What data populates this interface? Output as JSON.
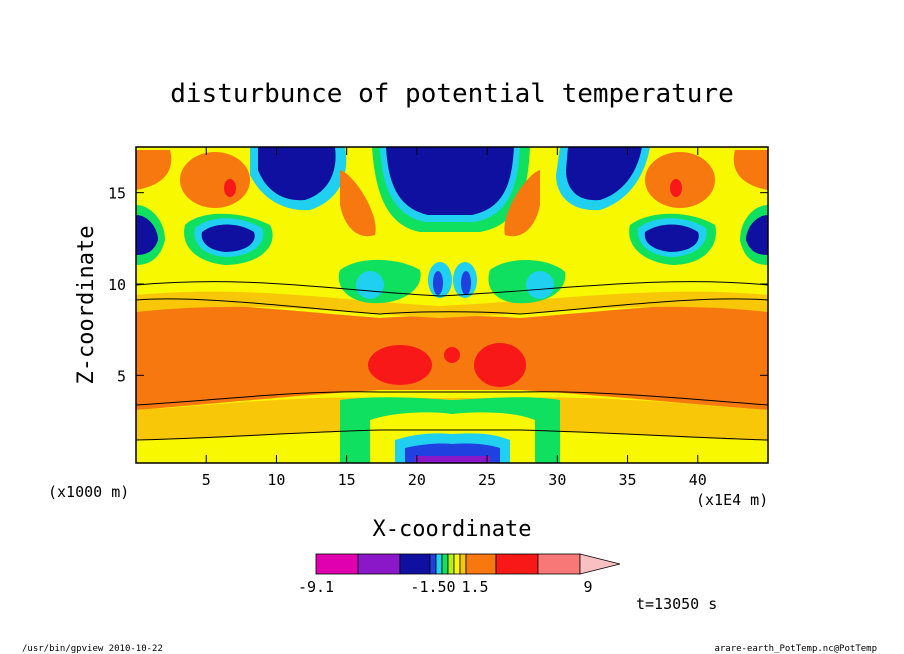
{
  "chart_data": {
    "type": "heatmap",
    "title": "disturbunce of potential temperature",
    "xlabel": "X-coordinate",
    "ylabel": "Z-coordinate",
    "x_unit_label": "(x1000 m)",
    "x_scale_label": "(x1E4 m)",
    "xlim": [
      0,
      45
    ],
    "ylim": [
      0.2,
      17.5
    ],
    "x_ticks": [
      5,
      10,
      15,
      20,
      25,
      30,
      35,
      40
    ],
    "y_ticks": [
      5,
      10,
      15
    ],
    "time_label": "t=13050 s",
    "colorbar": {
      "colors": [
        "#e000b0",
        "#8a18c8",
        "#1010a0",
        "#2040e0",
        "#20d0f0",
        "#10e060",
        "#b8ee18",
        "#f8f800",
        "#f8c808",
        "#f87810",
        "#f81818",
        "#f87878",
        "#f8c0c0"
      ],
      "tick_labels": [
        "-9.1",
        "-1.50",
        "1.5",
        "9"
      ],
      "tick_values": [
        -9.1,
        -1.5,
        1.5,
        9
      ]
    },
    "series": [
      {
        "region": "lower warm layer",
        "x": [
          0,
          45
        ],
        "z": [
          4,
          9
        ],
        "level": "positive"
      },
      {
        "region": "upper cold cores",
        "x": [
          18,
          27
        ],
        "z": [
          13,
          17.5
        ],
        "level": "negative"
      },
      {
        "region": "warm center blobs",
        "x": [
          19,
          26
        ],
        "z": [
          5,
          7
        ],
        "level": "strong positive"
      },
      {
        "region": "surface cold anomaly",
        "x": [
          18,
          28
        ],
        "z": [
          0.2,
          1.5
        ],
        "level": "strong negative"
      }
    ]
  },
  "footer": {
    "left": "/usr/bin/gpview   2010-10-22",
    "right": "arare-earth_PotTemp.nc@PotTemp"
  }
}
